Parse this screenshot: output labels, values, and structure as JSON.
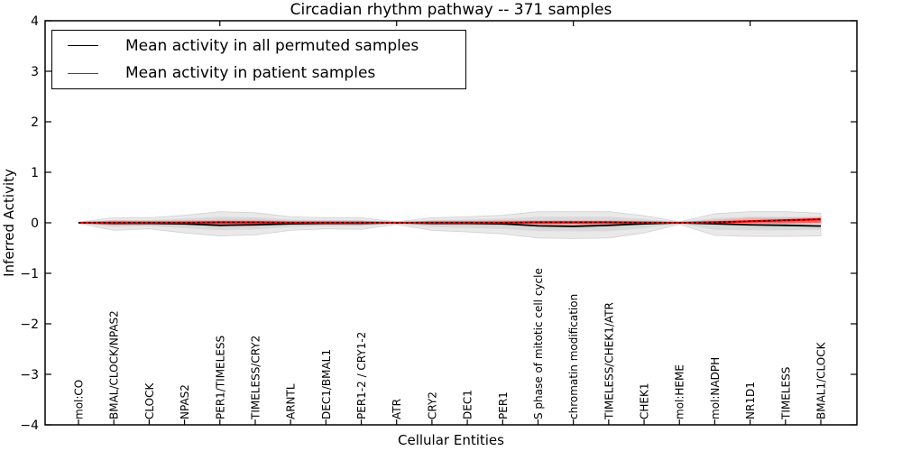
{
  "figure": {
    "title": "Circadian rhythm pathway -- 371 samples"
  },
  "legend": {
    "items": [
      {
        "label": "Mean activity in all permuted samples",
        "color": "#000000"
      },
      {
        "label": "Mean activity in patient samples",
        "color": "#ff0000"
      }
    ],
    "position": "upper left"
  },
  "chart_data": {
    "type": "line",
    "title": "Circadian rhythm pathway -- 371 samples",
    "xlabel": "Cellular Entities",
    "ylabel": "Inferred Activity",
    "ylim": [
      -4,
      4
    ],
    "ytick_values": [
      4,
      3,
      2,
      1,
      0,
      -1,
      -2,
      -3,
      -4
    ],
    "ytick_labels": [
      "4",
      "3",
      "2",
      "1",
      "0",
      "−1",
      "−2",
      "−3",
      "−4"
    ],
    "grid": false,
    "legend_position": "upper left",
    "categories": [
      "mol:CO",
      "BMAL/CLOCK/NPAS2",
      "CLOCK",
      "NPAS2",
      "PER1/TIMELESS",
      "TIMELESS/CRY2",
      "ARNTL",
      "DEC1/BMAL1",
      "PER1-2 / CRY1-2",
      "ATR",
      "CRY2",
      "DEC1",
      "PER1",
      "S phase of mitotic cell cycle",
      "chromatin modification",
      "TIMELESS/CHEK1/ATR",
      "CHEK1",
      "mol:HEME",
      "mol:NADPH",
      "NR1D1",
      "TIMELESS",
      "BMAL1/CLOCK"
    ],
    "top_tick_indices": [
      4,
      9,
      14,
      19
    ],
    "series": [
      {
        "name": "Mean activity in all permuted samples",
        "color": "#000000",
        "style": "solid",
        "values": [
          0.0,
          -0.01,
          -0.01,
          -0.02,
          -0.05,
          -0.04,
          -0.02,
          -0.01,
          -0.01,
          0.0,
          -0.01,
          -0.01,
          -0.02,
          -0.06,
          -0.07,
          -0.05,
          -0.02,
          0.0,
          -0.02,
          -0.04,
          -0.05,
          -0.065
        ]
      },
      {
        "name": "Mean activity in patient samples",
        "color": "#ff0000",
        "style": "solid",
        "dashed_black_overlay": true,
        "values": [
          0.0,
          0.005,
          0.005,
          0.005,
          0.01,
          0.01,
          0.005,
          0.005,
          0.005,
          0.0,
          0.005,
          0.005,
          0.005,
          0.01,
          0.01,
          0.01,
          0.005,
          0.0,
          0.01,
          0.03,
          0.05,
          0.07
        ]
      }
    ],
    "bands": [
      {
        "name": "permuted samples range",
        "color": "#e9e9e9",
        "inner_color": "#d9d9d9",
        "upper": [
          0.01,
          0.1,
          0.1,
          0.15,
          0.22,
          0.2,
          0.12,
          0.1,
          0.1,
          0.02,
          0.1,
          0.12,
          0.15,
          0.22,
          0.22,
          0.22,
          0.14,
          0.02,
          0.18,
          0.22,
          0.22,
          0.19
        ],
        "lower": [
          -0.01,
          -0.15,
          -0.12,
          -0.2,
          -0.26,
          -0.24,
          -0.15,
          -0.12,
          -0.13,
          -0.03,
          -0.15,
          -0.18,
          -0.22,
          -0.3,
          -0.31,
          -0.3,
          -0.2,
          -0.03,
          -0.25,
          -0.27,
          -0.27,
          -0.26
        ]
      },
      {
        "name": "patient samples range",
        "color": "#f5a5a5",
        "inner_color": "#ec5b5b",
        "upper": [
          0.01,
          0.05,
          0.04,
          0.05,
          0.06,
          0.06,
          0.04,
          0.04,
          0.04,
          0.01,
          0.04,
          0.04,
          0.05,
          0.05,
          0.05,
          0.05,
          0.04,
          0.01,
          0.06,
          0.1,
          0.1,
          0.12
        ],
        "lower": [
          -0.01,
          -0.05,
          -0.04,
          -0.05,
          -0.06,
          -0.06,
          -0.04,
          -0.04,
          -0.04,
          -0.01,
          -0.04,
          -0.04,
          -0.05,
          -0.05,
          -0.05,
          -0.05,
          -0.04,
          -0.01,
          -0.03,
          -0.01,
          -0.02,
          0.0
        ]
      }
    ]
  }
}
